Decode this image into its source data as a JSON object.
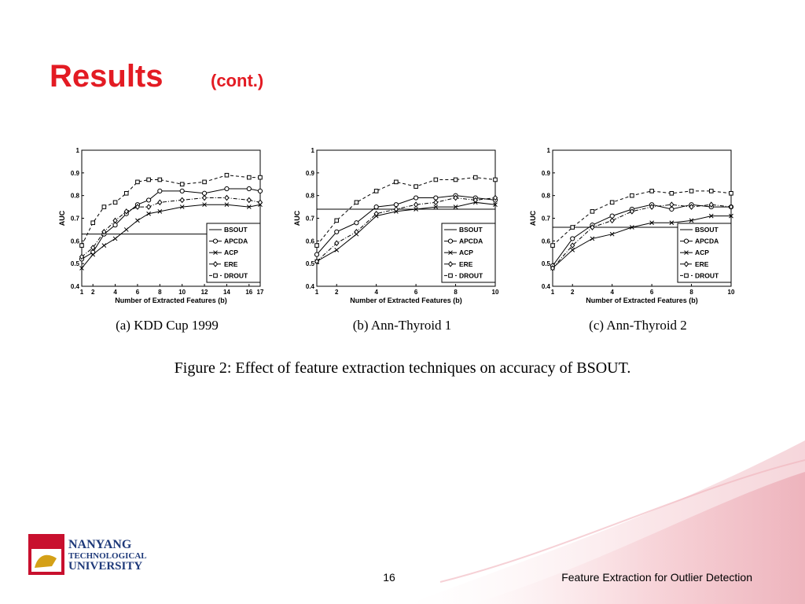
{
  "title": "Results",
  "title_suffix": "(cont.)",
  "figure_caption": "Figure 2: Effect of feature extraction techniques on accuracy of BSOUT.",
  "logo": {
    "line1": "NANYANG",
    "line2": "TECHNOLOGICAL",
    "line3": "UNIVERSITY"
  },
  "footer": {
    "page": "16",
    "text": "Feature Extraction for Outlier Detection"
  },
  "chart_data": [
    {
      "type": "line",
      "title": "(a) KDD Cup 1999",
      "xlabel": "Number of Extracted Features (b)",
      "ylabel": "AUC",
      "x": [
        1,
        2,
        3,
        4,
        5,
        6,
        7,
        8,
        10,
        12,
        14,
        16,
        17
      ],
      "xlim": [
        1,
        17
      ],
      "xticks": [
        1,
        2,
        4,
        6,
        8,
        10,
        12,
        14,
        16,
        17
      ],
      "ylim": [
        0.4,
        1
      ],
      "yticks": [
        0.4,
        0.5,
        0.6,
        0.7,
        0.8,
        0.9,
        1
      ],
      "legend": "lower right",
      "series": [
        {
          "name": "BSOUT",
          "color": "#000000",
          "marker": "none",
          "dash": "solid",
          "values": [
            0.63,
            0.63,
            0.63,
            0.63,
            0.63,
            0.63,
            0.63,
            0.63,
            0.63,
            0.63,
            0.63,
            0.63,
            0.63
          ]
        },
        {
          "name": "APCDA",
          "color": "#000000",
          "marker": "circle",
          "dash": "solid",
          "values": [
            0.52,
            0.55,
            0.63,
            0.67,
            0.72,
            0.76,
            0.78,
            0.82,
            0.82,
            0.81,
            0.83,
            0.83,
            0.82
          ]
        },
        {
          "name": "ACP",
          "color": "#000000",
          "marker": "cross",
          "dash": "solid",
          "values": [
            0.48,
            0.54,
            0.58,
            0.61,
            0.65,
            0.69,
            0.72,
            0.73,
            0.75,
            0.76,
            0.76,
            0.75,
            0.76
          ]
        },
        {
          "name": "ERE",
          "color": "#000000",
          "marker": "diamond",
          "dash": "dashdot",
          "values": [
            0.53,
            0.57,
            0.64,
            0.69,
            0.73,
            0.75,
            0.75,
            0.77,
            0.78,
            0.79,
            0.79,
            0.78,
            0.77
          ]
        },
        {
          "name": "DROUT",
          "color": "#000000",
          "marker": "square",
          "dash": "dashed",
          "values": [
            0.58,
            0.68,
            0.75,
            0.77,
            0.81,
            0.86,
            0.87,
            0.87,
            0.85,
            0.86,
            0.89,
            0.88,
            0.88
          ]
        }
      ]
    },
    {
      "type": "line",
      "title": "(b) Ann-Thyroid 1",
      "xlabel": "Number of Extracted Features (b)",
      "ylabel": "AUC",
      "x": [
        1,
        2,
        3,
        4,
        5,
        6,
        7,
        8,
        9,
        10
      ],
      "xlim": [
        1,
        10
      ],
      "xticks": [
        1,
        2,
        4,
        6,
        8,
        10
      ],
      "ylim": [
        0.4,
        1
      ],
      "yticks": [
        0.4,
        0.5,
        0.6,
        0.7,
        0.8,
        0.9,
        1
      ],
      "legend": "lower right",
      "series": [
        {
          "name": "BSOUT",
          "color": "#000000",
          "marker": "none",
          "dash": "solid",
          "values": [
            0.74,
            0.74,
            0.74,
            0.74,
            0.74,
            0.74,
            0.74,
            0.74,
            0.74,
            0.74
          ]
        },
        {
          "name": "APCDA",
          "color": "#000000",
          "marker": "circle",
          "dash": "solid",
          "values": [
            0.54,
            0.64,
            0.68,
            0.75,
            0.76,
            0.79,
            0.79,
            0.8,
            0.79,
            0.78
          ]
        },
        {
          "name": "ACP",
          "color": "#000000",
          "marker": "cross",
          "dash": "solid",
          "values": [
            0.51,
            0.56,
            0.63,
            0.71,
            0.73,
            0.74,
            0.75,
            0.75,
            0.77,
            0.76
          ]
        },
        {
          "name": "ERE",
          "color": "#000000",
          "marker": "diamond",
          "dash": "dashdot",
          "values": [
            0.51,
            0.59,
            0.64,
            0.72,
            0.74,
            0.76,
            0.77,
            0.79,
            0.78,
            0.79
          ]
        },
        {
          "name": "DROUT",
          "color": "#000000",
          "marker": "square",
          "dash": "dashed",
          "values": [
            0.58,
            0.69,
            0.77,
            0.82,
            0.86,
            0.84,
            0.87,
            0.87,
            0.88,
            0.87
          ]
        }
      ]
    },
    {
      "type": "line",
      "title": "(c) Ann-Thyroid 2",
      "xlabel": "Number of Extracted Features (b)",
      "ylabel": "AUC",
      "x": [
        1,
        2,
        3,
        4,
        5,
        6,
        7,
        8,
        9,
        10
      ],
      "xlim": [
        1,
        10
      ],
      "xticks": [
        1,
        2,
        4,
        6,
        8,
        10
      ],
      "ylim": [
        0.4,
        1
      ],
      "yticks": [
        0.4,
        0.5,
        0.6,
        0.7,
        0.8,
        0.9,
        1
      ],
      "legend": "lower right",
      "series": [
        {
          "name": "BSOUT",
          "color": "#000000",
          "marker": "none",
          "dash": "solid",
          "values": [
            0.66,
            0.66,
            0.66,
            0.66,
            0.66,
            0.66,
            0.66,
            0.66,
            0.66,
            0.66
          ]
        },
        {
          "name": "APCDA",
          "color": "#000000",
          "marker": "circle",
          "dash": "solid",
          "values": [
            0.49,
            0.61,
            0.67,
            0.71,
            0.74,
            0.76,
            0.74,
            0.76,
            0.75,
            0.75
          ]
        },
        {
          "name": "ACP",
          "color": "#000000",
          "marker": "cross",
          "dash": "solid",
          "values": [
            0.48,
            0.56,
            0.61,
            0.63,
            0.66,
            0.68,
            0.68,
            0.69,
            0.71,
            0.71
          ]
        },
        {
          "name": "ERE",
          "color": "#000000",
          "marker": "diamond",
          "dash": "dashdot",
          "values": [
            0.48,
            0.58,
            0.66,
            0.69,
            0.73,
            0.75,
            0.76,
            0.75,
            0.76,
            0.75
          ]
        },
        {
          "name": "DROUT",
          "color": "#000000",
          "marker": "square",
          "dash": "dashed",
          "values": [
            0.58,
            0.66,
            0.73,
            0.77,
            0.8,
            0.82,
            0.81,
            0.82,
            0.82,
            0.81
          ]
        }
      ]
    }
  ]
}
